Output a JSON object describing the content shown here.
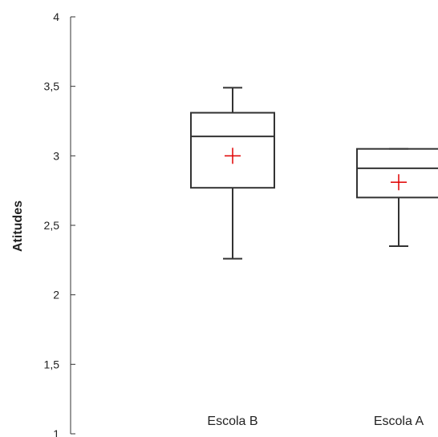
{
  "chart_data": {
    "type": "boxplot",
    "ylabel": "Atitudes",
    "ylim": [
      1,
      4
    ],
    "yticks": [
      {
        "value": 1,
        "label": "1"
      },
      {
        "value": 1.5,
        "label": "1,5"
      },
      {
        "value": 2,
        "label": "2"
      },
      {
        "value": 2.5,
        "label": "2,5"
      },
      {
        "value": 3,
        "label": "3"
      },
      {
        "value": 3.5,
        "label": "3,5"
      },
      {
        "value": 4,
        "label": "4"
      }
    ],
    "categories": [
      "Escola B",
      "Escola A"
    ],
    "boxes": [
      {
        "category": "Escola B",
        "whisker_low": 2.26,
        "q1": 2.77,
        "median": 3.14,
        "q3": 3.31,
        "whisker_high": 3.49,
        "mean": 3.0
      },
      {
        "category": "Escola A",
        "whisker_low": 2.35,
        "q1": 2.7,
        "median": 2.91,
        "q3": 3.05,
        "whisker_high": 3.05,
        "mean": 2.81
      }
    ],
    "colors": {
      "box": "#333333",
      "mean_marker": "#e00000",
      "axis": "#333333"
    },
    "grid": false,
    "legend": "none"
  }
}
